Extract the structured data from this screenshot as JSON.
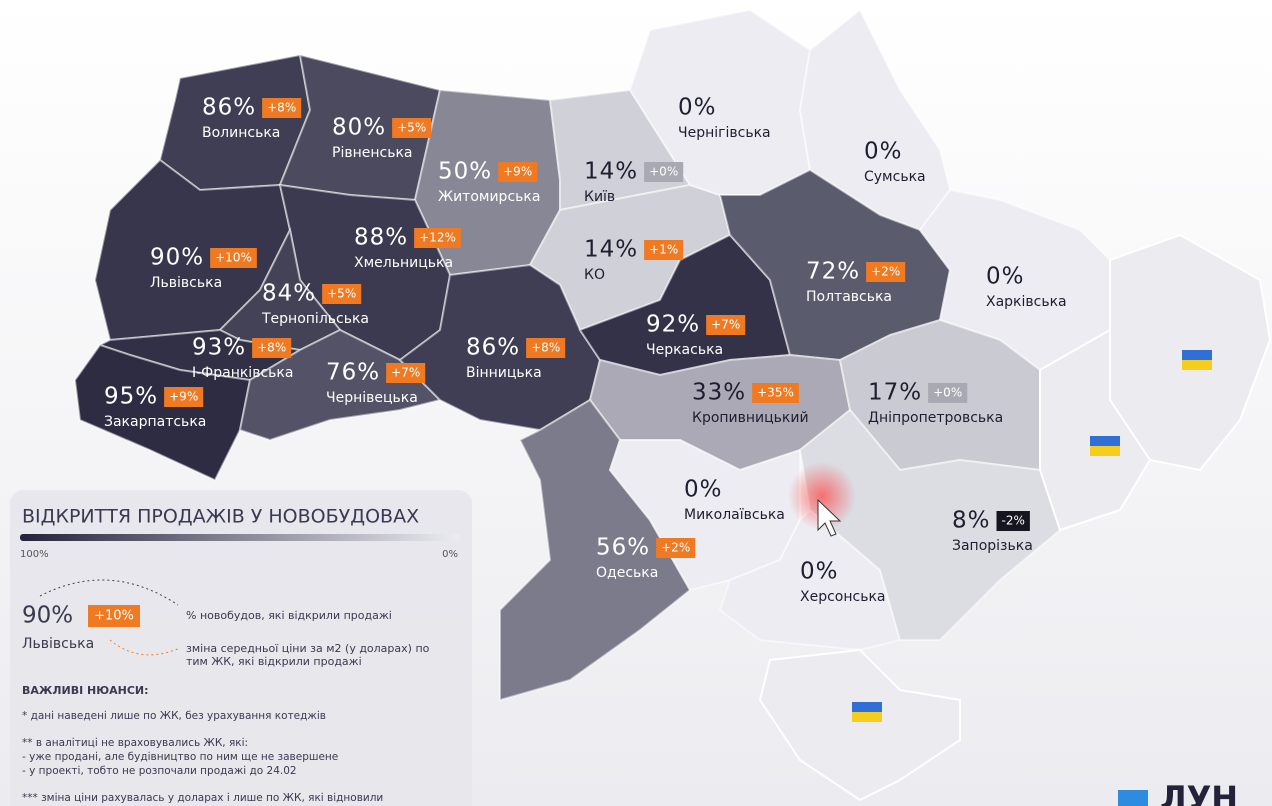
{
  "map": {
    "regions": [
      {
        "name": "Волинська",
        "value": 86,
        "value_label": "86%",
        "change": "+8%"
      },
      {
        "name": "Рівненська",
        "value": 80,
        "value_label": "80%",
        "change": "+5%"
      },
      {
        "name": "Житомирська",
        "value": 50,
        "value_label": "50%",
        "change": "+9%"
      },
      {
        "name": "Київ",
        "value": 14,
        "value_label": "14%",
        "change": "+0%"
      },
      {
        "name": "КО",
        "value": 14,
        "value_label": "14%",
        "change": "+1%"
      },
      {
        "name": "Чернігівська",
        "value": 0,
        "value_label": "0%"
      },
      {
        "name": "Сумська",
        "value": 0,
        "value_label": "0%"
      },
      {
        "name": "Львівська",
        "value": 90,
        "value_label": "90%",
        "change": "+10%"
      },
      {
        "name": "Хмельницька",
        "value": 88,
        "value_label": "88%",
        "change": "+12%"
      },
      {
        "name": "Тернопільська",
        "value": 84,
        "value_label": "84%",
        "change": "+5%"
      },
      {
        "name": "І-Франківська",
        "value": 93,
        "value_label": "93%",
        "change": "+8%"
      },
      {
        "name": "Закарпатська",
        "value": 95,
        "value_label": "95%",
        "change": "+9%"
      },
      {
        "name": "Чернівецька",
        "value": 76,
        "value_label": "76%",
        "change": "+7%"
      },
      {
        "name": "Вінницька",
        "value": 86,
        "value_label": "86%",
        "change": "+8%"
      },
      {
        "name": "Черкаська",
        "value": 92,
        "value_label": "92%",
        "change": "+7%"
      },
      {
        "name": "Полтавська",
        "value": 72,
        "value_label": "72%",
        "change": "+2%"
      },
      {
        "name": "Харківська",
        "value": 0,
        "value_label": "0%"
      },
      {
        "name": "Кропивницький",
        "value": 33,
        "value_label": "33%",
        "change": "+35%"
      },
      {
        "name": "Дніпропетровська",
        "value": 17,
        "value_label": "17%",
        "change": "+0%"
      },
      {
        "name": "Одеська",
        "value": 56,
        "value_label": "56%",
        "change": "+2%"
      },
      {
        "name": "Миколаївська",
        "value": 0,
        "value_label": "0%"
      },
      {
        "name": "Херсонська",
        "value": 0,
        "value_label": "0%"
      },
      {
        "name": "Запорізька",
        "value": 8,
        "value_label": "8%",
        "change": "-2%"
      }
    ]
  },
  "legend": {
    "title": "ВІДКРИТТЯ ПРОДАЖІВ У НОВОБУДОВАХ",
    "scale_max": "100%",
    "scale_min": "0%",
    "example_value": "90%",
    "example_change": "+10%",
    "example_name": "Львівська",
    "share_note": "% новобудов, які відкрили продажі",
    "change_note_1": "зміна  середньої ціни за м2 (у доларах) по",
    "change_note_2": "тим ЖК, які відкрили продажі"
  },
  "notes": {
    "heading": "ВАЖЛИВІ НЮАНСИ:",
    "items": [
      "* дані наведені лише по ЖК, без урахування котеджів",
      "** в аналітиці не враховувались ЖК, які:",
      "- уже продані, але будівництво по ним ще не завершене",
      "- у проекті, тобто не розпочали продажі до 24.02",
      "*** зміна ціни рахувалась у доларах і лише по ЖК, які відновили"
    ]
  },
  "logo": "ЛУН"
}
